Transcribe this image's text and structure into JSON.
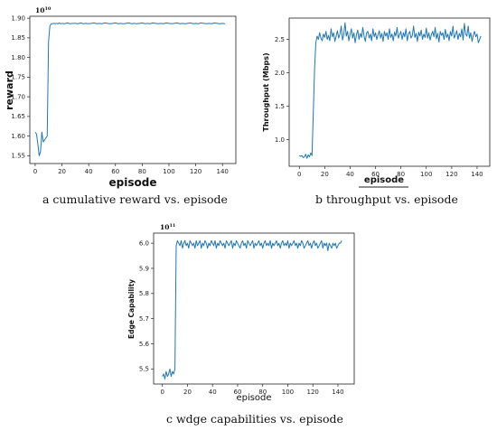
{
  "chart_data": [
    {
      "type": "line",
      "panel": "a",
      "caption": "a  cumulative reward vs. episode",
      "xlabel": "episode",
      "ylabel": "reward",
      "scale_note": "10",
      "scale_exp": "10",
      "xlim": [
        -4,
        150
      ],
      "ylim": [
        1.53,
        1.905
      ],
      "xticks": [
        0,
        20,
        40,
        60,
        80,
        100,
        120,
        140
      ],
      "yticks": [
        1.55,
        1.6,
        1.65,
        1.7,
        1.75,
        1.8,
        1.85,
        1.9
      ],
      "ytick_labels": [
        "1.55",
        "1.60",
        "1.65",
        "1.70",
        "1.75",
        "1.80",
        "1.85",
        "1.90"
      ],
      "line_color": "#1f77b4",
      "grid": false,
      "series": [
        {
          "x": [
            0,
            1,
            2,
            3,
            4,
            5,
            6,
            7,
            8,
            9,
            10,
            11,
            12,
            13,
            14,
            15,
            16,
            17,
            18,
            19,
            20,
            22,
            24,
            26,
            28,
            30,
            32,
            34,
            36,
            38,
            40,
            42,
            44,
            46,
            48,
            50,
            52,
            54,
            56,
            58,
            60,
            62,
            64,
            66,
            68,
            70,
            72,
            74,
            76,
            78,
            80,
            82,
            84,
            86,
            88,
            90,
            92,
            94,
            96,
            98,
            100,
            102,
            104,
            106,
            108,
            110,
            112,
            114,
            116,
            118,
            120,
            122,
            124,
            126,
            128,
            130,
            132,
            134,
            136,
            138,
            140,
            142
          ],
          "y": [
            1.61,
            1.605,
            1.58,
            1.55,
            1.56,
            1.61,
            1.585,
            1.59,
            1.595,
            1.6,
            1.84,
            1.88,
            1.886,
            1.886,
            1.887,
            1.886,
            1.887,
            1.886,
            1.888,
            1.886,
            1.887,
            1.886,
            1.888,
            1.886,
            1.887,
            1.887,
            1.886,
            1.888,
            1.886,
            1.887,
            1.886,
            1.887,
            1.888,
            1.886,
            1.887,
            1.886,
            1.888,
            1.887,
            1.886,
            1.887,
            1.888,
            1.886,
            1.887,
            1.886,
            1.887,
            1.888,
            1.886,
            1.887,
            1.886,
            1.887,
            1.888,
            1.886,
            1.887,
            1.886,
            1.888,
            1.887,
            1.886,
            1.887,
            1.886,
            1.888,
            1.887,
            1.886,
            1.887,
            1.888,
            1.886,
            1.887,
            1.886,
            1.887,
            1.888,
            1.886,
            1.887,
            1.886,
            1.888,
            1.887,
            1.886,
            1.887,
            1.886,
            1.888,
            1.887,
            1.886,
            1.887,
            1.886
          ]
        }
      ]
    },
    {
      "type": "line",
      "panel": "b",
      "caption": "b  throughput vs. episode",
      "xlabel": "episode",
      "ylabel": "Throughput (Mbps)",
      "xlim": [
        -8,
        150
      ],
      "ylim": [
        0.6,
        2.82
      ],
      "xticks": [
        0,
        20,
        40,
        60,
        80,
        100,
        120,
        140
      ],
      "yticks": [
        1.0,
        1.5,
        2.0,
        2.5
      ],
      "ytick_labels": [
        "1.0",
        "1.5",
        "2.0",
        "2.5"
      ],
      "line_color": "#1f77b4",
      "grid": false,
      "series": [
        {
          "x": [
            0,
            1,
            2,
            3,
            4,
            5,
            6,
            7,
            8,
            9,
            10,
            11,
            12,
            13,
            14,
            15,
            16,
            17,
            18,
            19,
            20,
            21,
            22,
            23,
            24,
            25,
            26,
            27,
            28,
            29,
            30,
            31,
            32,
            33,
            34,
            35,
            36,
            37,
            38,
            39,
            40,
            41,
            42,
            43,
            44,
            45,
            46,
            47,
            48,
            49,
            50,
            51,
            52,
            53,
            54,
            55,
            56,
            57,
            58,
            59,
            60,
            61,
            62,
            63,
            64,
            65,
            66,
            67,
            68,
            69,
            70,
            71,
            72,
            73,
            74,
            75,
            76,
            77,
            78,
            79,
            80,
            81,
            82,
            83,
            84,
            85,
            86,
            87,
            88,
            89,
            90,
            91,
            92,
            93,
            94,
            95,
            96,
            97,
            98,
            99,
            100,
            101,
            102,
            103,
            104,
            105,
            106,
            107,
            108,
            109,
            110,
            111,
            112,
            113,
            114,
            115,
            116,
            117,
            118,
            119,
            120,
            121,
            122,
            123,
            124,
            125,
            126,
            127,
            128,
            129,
            130,
            131,
            132,
            133,
            134,
            135,
            136,
            137,
            138,
            139,
            140,
            141,
            142,
            143
          ],
          "y": [
            0.76,
            0.75,
            0.76,
            0.73,
            0.74,
            0.78,
            0.72,
            0.77,
            0.74,
            0.8,
            0.76,
            1.4,
            2.05,
            2.45,
            2.55,
            2.5,
            2.6,
            2.52,
            2.48,
            2.58,
            2.53,
            2.62,
            2.5,
            2.56,
            2.48,
            2.66,
            2.54,
            2.6,
            2.47,
            2.55,
            2.63,
            2.52,
            2.58,
            2.7,
            2.49,
            2.57,
            2.75,
            2.55,
            2.62,
            2.48,
            2.58,
            2.66,
            2.52,
            2.6,
            2.45,
            2.57,
            2.64,
            2.5,
            2.59,
            2.53,
            2.68,
            2.55,
            2.47,
            2.6,
            2.62,
            2.52,
            2.58,
            2.48,
            2.66,
            2.54,
            2.6,
            2.5,
            2.57,
            2.63,
            2.52,
            2.59,
            2.47,
            2.62,
            2.55,
            2.6,
            2.5,
            2.66,
            2.53,
            2.58,
            2.48,
            2.61,
            2.55,
            2.68,
            2.52,
            2.57,
            2.62,
            2.5,
            2.6,
            2.54,
            2.66,
            2.48,
            2.58,
            2.62,
            2.52,
            2.56,
            2.7,
            2.53,
            2.59,
            2.47,
            2.61,
            2.55,
            2.64,
            2.5,
            2.58,
            2.53,
            2.67,
            2.52,
            2.6,
            2.49,
            2.57,
            2.62,
            2.54,
            2.68,
            2.51,
            2.59,
            2.46,
            2.62,
            2.56,
            2.6,
            2.5,
            2.65,
            2.53,
            2.58,
            2.48,
            2.62,
            2.55,
            2.7,
            2.52,
            2.57,
            2.63,
            2.5,
            2.59,
            2.54,
            2.66,
            2.49,
            2.74,
            2.58,
            2.55,
            2.7,
            2.52,
            2.6,
            2.47,
            2.56,
            2.62,
            2.54,
            2.58,
            2.45,
            2.5,
            2.55
          ]
        }
      ]
    },
    {
      "type": "line",
      "panel": "c",
      "caption": "c  wdge capabilities vs. episode",
      "xlabel": "episode",
      "ylabel": "Edge Capability",
      "scale_note": "10",
      "scale_exp": "11",
      "xlim": [
        -7,
        153
      ],
      "ylim": [
        5.44,
        6.04
      ],
      "xticks": [
        0,
        20,
        40,
        60,
        80,
        100,
        120,
        140
      ],
      "yticks": [
        5.5,
        5.6,
        5.7,
        5.8,
        5.9,
        6.0
      ],
      "ytick_labels": [
        "5.5",
        "5.6",
        "5.7",
        "5.8",
        "5.9",
        "6.0"
      ],
      "line_color": "#1f77b4",
      "grid": false,
      "series": [
        {
          "x": [
            0,
            1,
            2,
            3,
            4,
            5,
            6,
            7,
            8,
            9,
            10,
            11,
            12,
            13,
            14,
            15,
            16,
            17,
            18,
            19,
            20,
            21,
            22,
            23,
            24,
            25,
            26,
            27,
            28,
            29,
            30,
            31,
            32,
            33,
            34,
            35,
            36,
            37,
            38,
            39,
            40,
            41,
            42,
            43,
            44,
            45,
            46,
            47,
            48,
            49,
            50,
            51,
            52,
            53,
            54,
            55,
            56,
            57,
            58,
            59,
            60,
            61,
            62,
            63,
            64,
            65,
            66,
            67,
            68,
            69,
            70,
            71,
            72,
            73,
            74,
            75,
            76,
            77,
            78,
            79,
            80,
            81,
            82,
            83,
            84,
            85,
            86,
            87,
            88,
            89,
            90,
            91,
            92,
            93,
            94,
            95,
            96,
            97,
            98,
            99,
            100,
            101,
            102,
            103,
            104,
            105,
            106,
            107,
            108,
            109,
            110,
            111,
            112,
            113,
            114,
            115,
            116,
            117,
            118,
            119,
            120,
            121,
            122,
            123,
            124,
            125,
            126,
            127,
            128,
            129,
            130,
            131,
            132,
            133,
            134,
            135,
            136,
            137,
            138,
            139,
            140,
            141,
            142,
            143
          ],
          "y": [
            5.47,
            5.48,
            5.46,
            5.49,
            5.47,
            5.48,
            5.5,
            5.47,
            5.49,
            5.48,
            5.5,
            5.99,
            6.01,
            6.0,
            5.99,
            6.01,
            5.98,
            6.0,
            6.01,
            5.99,
            6.0,
            5.98,
            6.01,
            6.0,
            5.99,
            6.0,
            5.98,
            6.01,
            5.99,
            6.0,
            6.01,
            5.98,
            6.0,
            5.99,
            6.01,
            6.0,
            5.98,
            6.0,
            5.99,
            6.01,
            6.0,
            5.99,
            6.01,
            5.98,
            6.0,
            5.99,
            6.01,
            6.0,
            5.99,
            6.0,
            5.98,
            6.01,
            6.0,
            5.99,
            6.0,
            6.01,
            5.98,
            6.0,
            5.99,
            6.01,
            6.0,
            5.99,
            5.98,
            6.0,
            6.01,
            5.99,
            6.0,
            5.98,
            6.01,
            6.0,
            5.99,
            6.0,
            6.01,
            5.98,
            6.0,
            5.99,
            6.0,
            6.01,
            5.99,
            6.0,
            5.98,
            6.0,
            6.01,
            5.99,
            6.0,
            5.99,
            6.01,
            5.98,
            6.0,
            5.99,
            6.0,
            6.01,
            5.99,
            6.0,
            5.98,
            6.0,
            6.01,
            5.99,
            6.0,
            5.99,
            6.01,
            5.98,
            6.0,
            5.99,
            6.0,
            6.01,
            5.99,
            6.0,
            5.98,
            6.0,
            5.99,
            6.01,
            6.0,
            5.98,
            5.99,
            6.0,
            6.01,
            5.99,
            6.0,
            5.98,
            6.0,
            6.01,
            5.99,
            6.0,
            5.98,
            5.99,
            6.0,
            6.01,
            5.98,
            6.0,
            5.99,
            6.0,
            5.97,
            6.0,
            5.99,
            5.98,
            6.0,
            5.99,
            6.0,
            5.98,
            5.99,
            6.0,
            6.0,
            6.01
          ]
        }
      ]
    }
  ]
}
